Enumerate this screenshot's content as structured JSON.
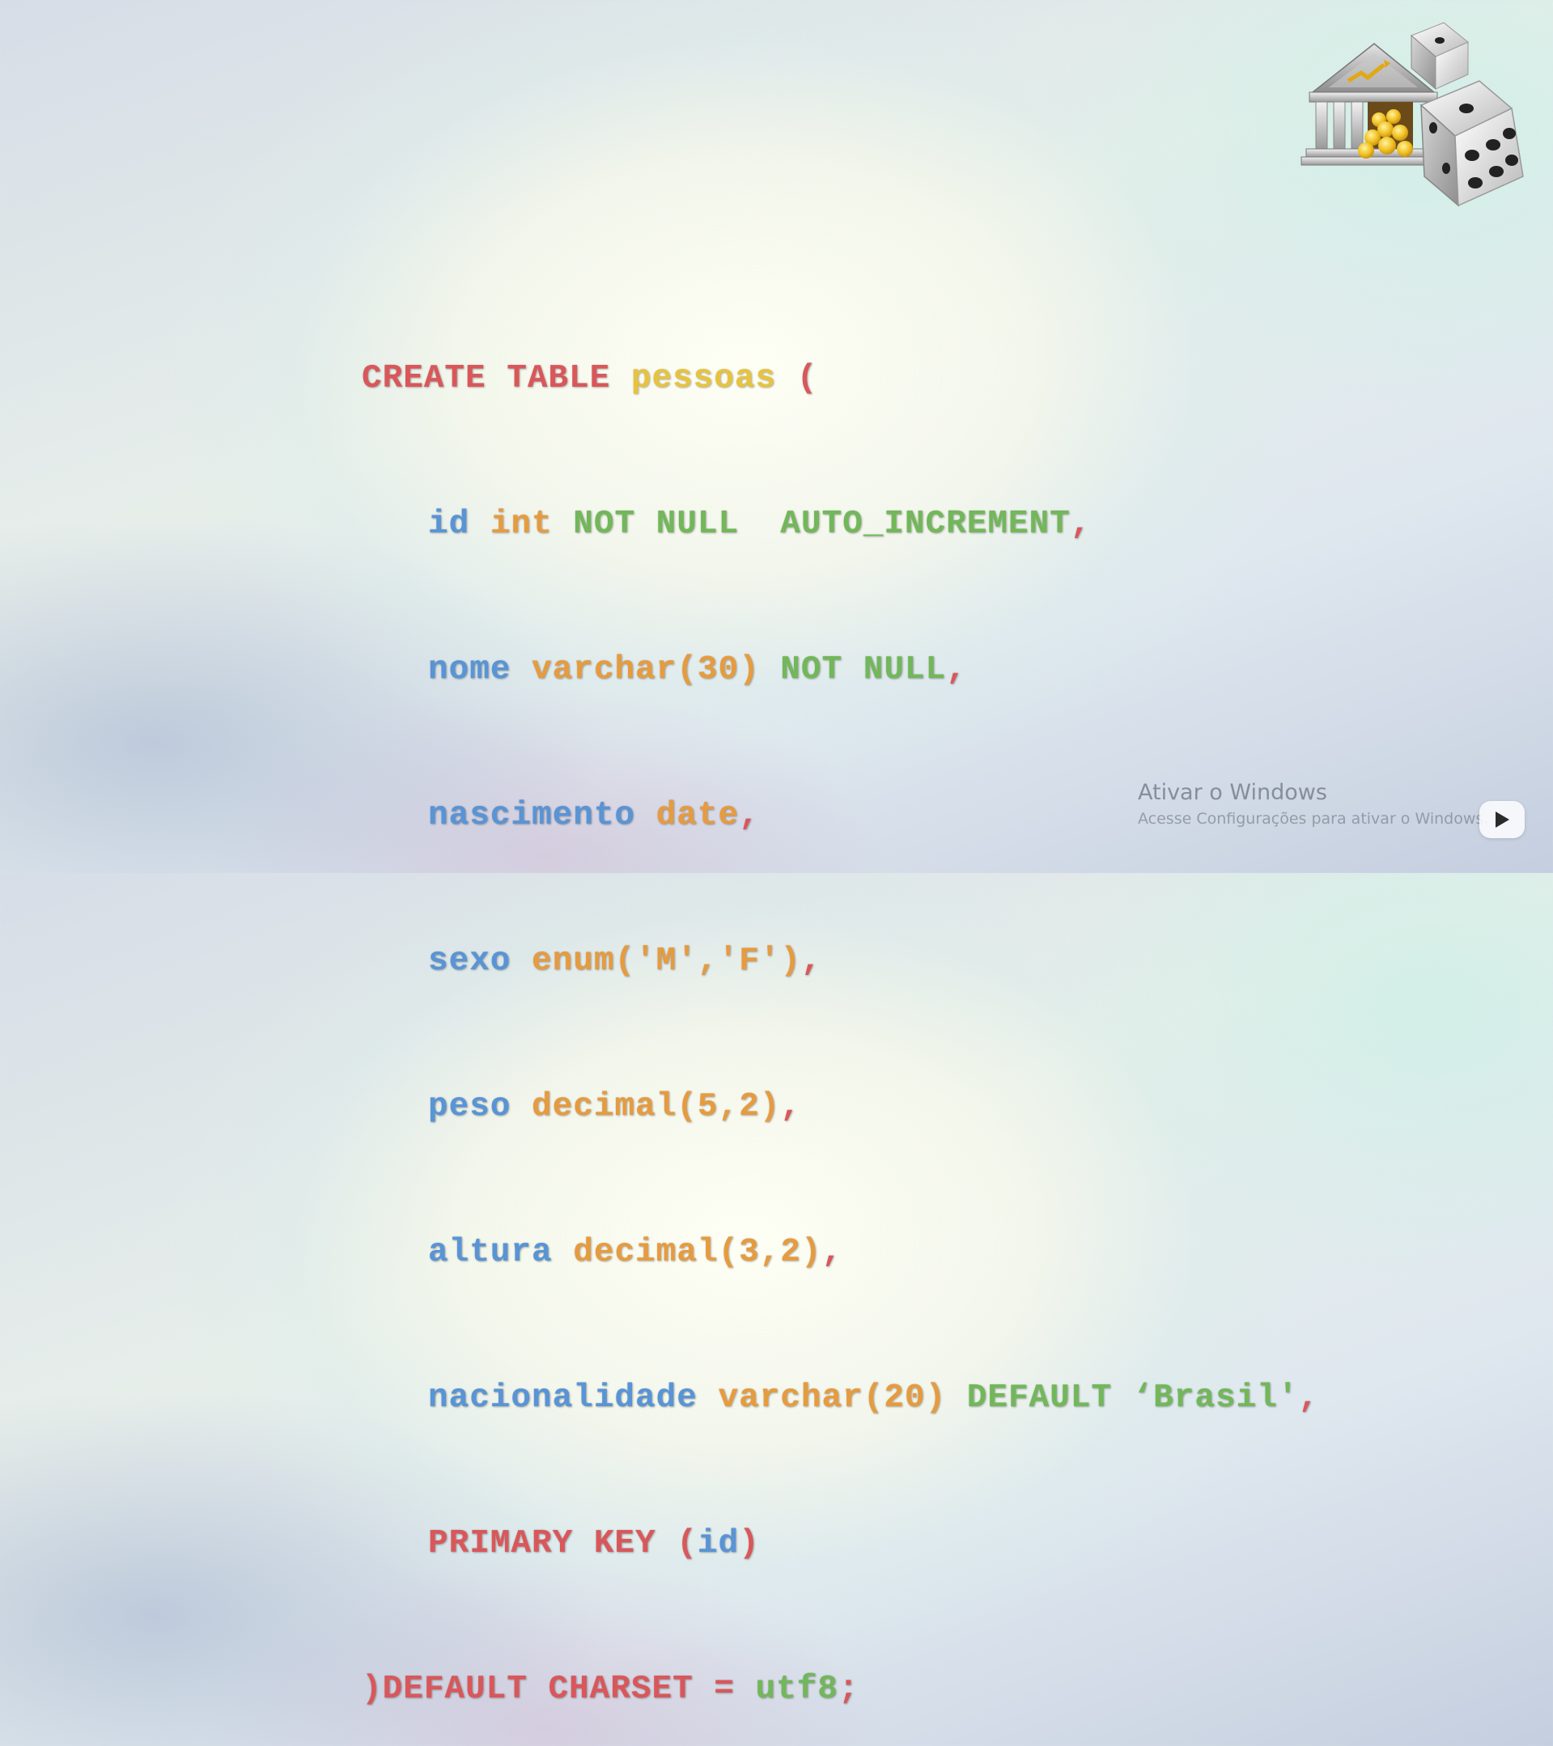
{
  "code": {
    "line1": {
      "kw": "CREATE TABLE",
      "table": "pessoas",
      "paren": "("
    },
    "line2": {
      "col": "id",
      "type": "int",
      "constraint": "NOT NULL  AUTO_INCREMENT",
      "comma": ","
    },
    "line3": {
      "col": "nome",
      "type": "varchar(30)",
      "constraint": "NOT NULL",
      "comma": ","
    },
    "line4": {
      "col": "nascimento",
      "type": "date",
      "comma": ","
    },
    "line5": {
      "col": "sexo",
      "type": "enum('M','F')",
      "comma": ","
    },
    "line6": {
      "col": "peso",
      "type": "decimal(5,2)",
      "comma": ","
    },
    "line7": {
      "col": "altura",
      "type": "decimal(3,2)",
      "comma": ","
    },
    "line8": {
      "col": "nacionalidade",
      "type": "varchar(20)",
      "default": "DEFAULT ‘Brasil'",
      "comma": ","
    },
    "line9": {
      "kw": "PRIMARY KEY",
      "open": "(",
      "col": "id",
      "close": ")"
    },
    "line10": {
      "close": ")",
      "kw": "DEFAULT CHARSET =",
      "value": "utf8",
      "semicolon": ";"
    }
  },
  "colors": {
    "keyword": "#d9575a",
    "table_name": "#e7c33e",
    "column": "#5894d6",
    "type": "#e69b3f",
    "constraint": "#72b75a"
  },
  "icons": {
    "logo": "bank-with-dice-logo-icon",
    "play": "play-icon"
  },
  "watermark": {
    "title": "Ativar o Windows",
    "subtitle": "Acesse Configurações para ativar o Windows."
  }
}
